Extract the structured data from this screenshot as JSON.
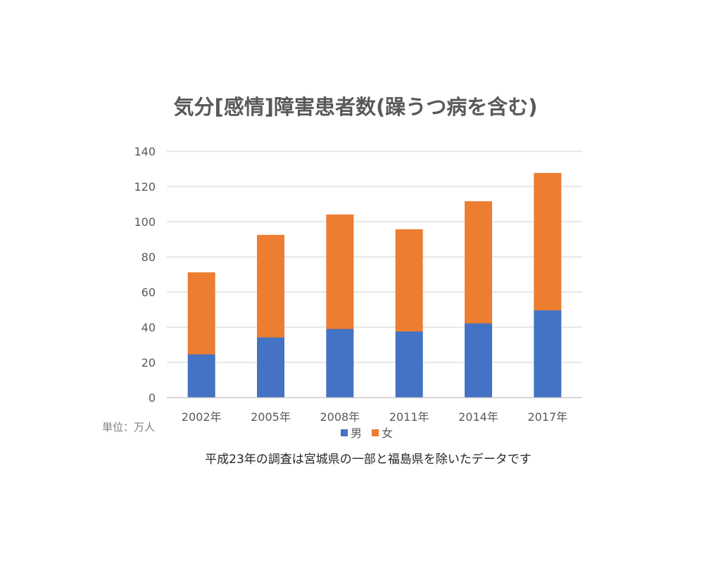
{
  "chart_data": {
    "type": "bar",
    "stacked": true,
    "title": "気分[感情]障害患者数(躁うつ病を含む)",
    "categories": [
      "2002年",
      "2005年",
      "2008年",
      "2011年",
      "2014年",
      "2017年"
    ],
    "series": [
      {
        "name": "男",
        "color": "#4472c4",
        "values": [
          24.6,
          34.2,
          39.0,
          37.6,
          42.2,
          49.6
        ]
      },
      {
        "name": "女",
        "color": "#ed7d31",
        "values": [
          46.6,
          58.3,
          65.1,
          58.1,
          69.4,
          78.1
        ]
      }
    ],
    "ylim": [
      0,
      140
    ],
    "yticks": [
      0,
      20,
      40,
      60,
      80,
      100,
      120,
      140
    ],
    "grid": true,
    "legend": "bottom",
    "unit_label": "単位：万人",
    "note": "平成23年の調査は宮城県の一部と福島県を除いたデータです"
  }
}
